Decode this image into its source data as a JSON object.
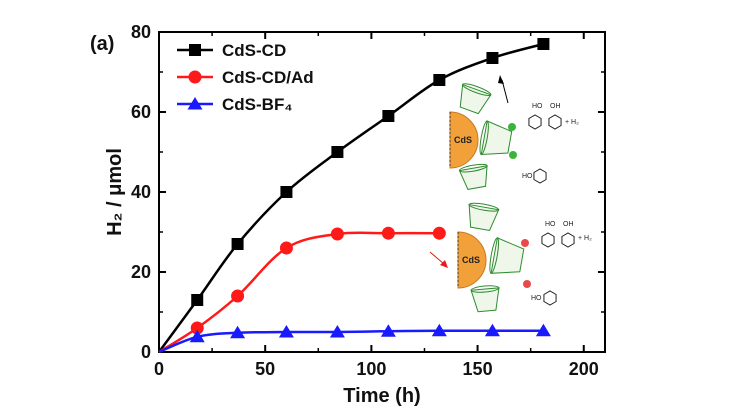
{
  "panel_label": "(a)",
  "chart_data": {
    "type": "line",
    "xlabel": "Time (h)",
    "ylabel": "H₂ / μmol",
    "xlim": [
      0,
      210
    ],
    "ylim": [
      0,
      80
    ],
    "xticks": [
      0,
      50,
      100,
      150,
      200
    ],
    "yticks": [
      0,
      20,
      40,
      60,
      80
    ],
    "legend_position": "top-left",
    "series": [
      {
        "name": "CdS-CD",
        "color": "#000000",
        "marker": "square",
        "x": [
          0,
          18,
          37,
          60,
          84,
          108,
          132,
          157,
          181
        ],
        "y": [
          0,
          13,
          27,
          40,
          50,
          59,
          68,
          73.5,
          77
        ]
      },
      {
        "name": "CdS-CD/Ad",
        "color": "#ff1a1a",
        "marker": "circle",
        "x": [
          0,
          18,
          37,
          60,
          84,
          108,
          132
        ],
        "y": [
          0,
          6,
          14,
          26,
          29.5,
          29.7,
          29.7
        ]
      },
      {
        "name": "CdS-BF₄",
        "color": "#1a1aff",
        "marker": "triangle",
        "x": [
          0,
          18,
          37,
          60,
          84,
          108,
          132,
          157,
          181
        ],
        "y": [
          0,
          3.8,
          4.8,
          5,
          5,
          5.2,
          5.3,
          5.3,
          5.3
        ]
      }
    ],
    "inset_labels": {
      "cds": "CdS",
      "h2": "+ H₂",
      "ho": "HO",
      "oh": "OH"
    }
  }
}
